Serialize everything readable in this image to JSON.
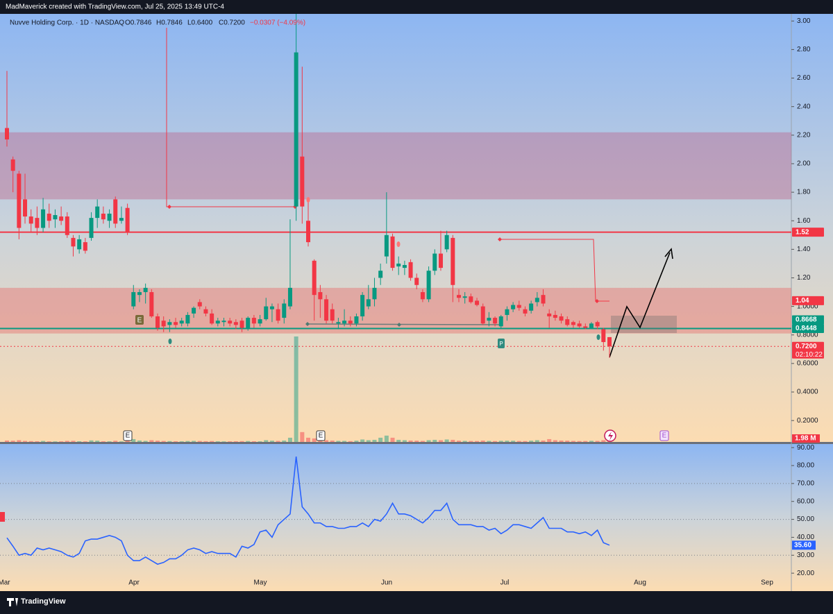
{
  "banner": "MadMaverick created with TradingView.com, Jul 25, 2025 13:49 UTC-4",
  "footer": "TradingView",
  "markers": [
    "E",
    "E",
    "E",
    "E",
    "P"
  ],
  "chart_data": {
    "type": "candlestick",
    "legend": {
      "name": "Nuvve Holding Corp. · 1D · NASDAQ",
      "ohlc": [
        "O0.7846",
        "H0.7846",
        "L0.6400",
        "C0.7200"
      ],
      "change": "−0.0307 (−4.09%)"
    },
    "xlabels": [
      "Mar",
      "Apr",
      "May",
      "Jun",
      "Jul",
      "Aug",
      "Sep"
    ],
    "up_color": "#089981",
    "down_color": "#f23645",
    "ylim": [
      0.05,
      3.05
    ],
    "yticks": [
      {
        "value": 3.0,
        "label": "3.00"
      },
      {
        "value": 2.8,
        "label": "2.80"
      },
      {
        "value": 2.6,
        "label": "2.60"
      },
      {
        "value": 2.4,
        "label": "2.40"
      },
      {
        "value": 2.2,
        "label": "2.20"
      },
      {
        "value": 2.0,
        "label": "2.00"
      },
      {
        "value": 1.8,
        "label": "1.80"
      },
      {
        "value": 1.6,
        "label": "1.60"
      },
      {
        "value": 1.4,
        "label": "1.40"
      },
      {
        "value": 1.2,
        "label": "1.20"
      },
      {
        "value": 1.0,
        "label": "1.0000"
      },
      {
        "value": 0.8,
        "label": "0.8000"
      },
      {
        "value": 0.6,
        "label": "0.6000"
      },
      {
        "value": 0.4,
        "label": "0.4000"
      },
      {
        "value": 0.2,
        "label": "0.2000"
      }
    ],
    "zones": [
      {
        "top": 2.22,
        "bottom": 1.75,
        "color": "rgba(190,90,130,0.38)"
      },
      {
        "top": 1.13,
        "bottom": 0.81,
        "color": "rgba(235,95,95,0.38)"
      }
    ],
    "price_labels": [
      {
        "value": 1.52,
        "color": "#f23645",
        "line": "solid"
      },
      {
        "value": 1.04,
        "color": "#f23645"
      },
      {
        "value": 0.8668,
        "color": "#089981"
      },
      {
        "value": 0.8448,
        "color": "#089981",
        "line": "solid"
      },
      {
        "value": 0.72,
        "label": "0.7200",
        "sub": "02:10:22",
        "color": "#f23645",
        "line": "dashed"
      }
    ],
    "ohlc": [
      [
        2.25,
        2.65,
        2.12,
        2.17
      ],
      [
        2.03,
        2.05,
        1.8,
        1.95
      ],
      [
        1.93,
        1.95,
        1.47,
        1.55
      ],
      [
        1.75,
        1.93,
        1.58,
        1.63
      ],
      [
        1.63,
        1.68,
        1.52,
        1.58
      ],
      [
        1.62,
        1.7,
        1.5,
        1.55
      ],
      [
        1.55,
        1.76,
        1.52,
        1.68
      ],
      [
        1.65,
        1.72,
        1.55,
        1.6
      ],
      [
        1.61,
        1.68,
        1.55,
        1.64
      ],
      [
        1.63,
        1.7,
        1.57,
        1.6
      ],
      [
        1.63,
        1.66,
        1.48,
        1.5
      ],
      [
        1.48,
        1.5,
        1.35,
        1.42
      ],
      [
        1.4,
        1.5,
        1.37,
        1.47
      ],
      [
        1.45,
        1.48,
        1.37,
        1.39
      ],
      [
        1.48,
        1.66,
        1.46,
        1.62
      ],
      [
        1.62,
        1.75,
        1.55,
        1.7
      ],
      [
        1.65,
        1.7,
        1.58,
        1.61
      ],
      [
        1.6,
        1.68,
        1.55,
        1.65
      ],
      [
        1.75,
        1.77,
        1.55,
        1.58
      ],
      [
        1.6,
        1.7,
        1.58,
        1.62
      ],
      [
        1.69,
        1.72,
        1.5,
        1.52
      ],
      [
        1.0,
        1.15,
        0.98,
        1.1
      ],
      [
        1.08,
        1.12,
        1.03,
        1.1
      ],
      [
        1.1,
        1.16,
        1.02,
        1.13
      ],
      [
        1.1,
        1.12,
        0.92,
        0.93
      ],
      [
        0.93,
        0.95,
        0.83,
        0.85
      ],
      [
        0.9,
        0.93,
        0.82,
        0.86
      ],
      [
        0.87,
        0.91,
        0.82,
        0.89
      ],
      [
        0.89,
        0.92,
        0.85,
        0.87
      ],
      [
        0.88,
        0.92,
        0.86,
        0.9
      ],
      [
        0.88,
        0.96,
        0.86,
        0.94
      ],
      [
        0.95,
        1.0,
        0.92,
        0.99
      ],
      [
        1.03,
        1.05,
        0.98,
        1.0
      ],
      [
        0.98,
        1.0,
        0.93,
        0.95
      ],
      [
        0.95,
        0.98,
        0.87,
        0.88
      ],
      [
        0.88,
        0.92,
        0.86,
        0.9
      ],
      [
        0.89,
        0.92,
        0.86,
        0.9
      ],
      [
        0.9,
        0.92,
        0.86,
        0.88
      ],
      [
        0.89,
        0.91,
        0.84,
        0.87
      ],
      [
        0.9,
        0.92,
        0.82,
        0.85
      ],
      [
        0.85,
        0.93,
        0.83,
        0.92
      ],
      [
        0.92,
        0.94,
        0.85,
        0.88
      ],
      [
        0.88,
        0.94,
        0.86,
        0.91
      ],
      [
        0.91,
        1.06,
        0.9,
        1.0
      ],
      [
        0.98,
        1.02,
        0.89,
        1.0
      ],
      [
        0.98,
        1.02,
        0.88,
        0.9
      ],
      [
        0.92,
        1.05,
        0.88,
        1.02
      ],
      [
        1.0,
        1.61,
        0.98,
        1.13
      ],
      [
        1.7,
        3.05,
        1.6,
        2.78
      ],
      [
        2.05,
        2.68,
        1.58,
        1.7
      ],
      [
        1.6,
        1.76,
        1.42,
        1.45
      ],
      [
        1.32,
        1.33,
        0.9,
        1.08
      ],
      [
        1.1,
        1.15,
        0.92,
        1.05
      ],
      [
        1.05,
        1.08,
        0.88,
        0.9
      ],
      [
        0.98,
        1.02,
        0.88,
        0.9
      ],
      [
        0.88,
        0.92,
        0.84,
        0.89
      ],
      [
        0.88,
        0.98,
        0.86,
        0.9
      ],
      [
        0.9,
        0.93,
        0.86,
        0.88
      ],
      [
        0.88,
        0.95,
        0.86,
        0.93
      ],
      [
        0.93,
        1.1,
        0.9,
        1.08
      ],
      [
        1.0,
        1.15,
        0.98,
        1.05
      ],
      [
        1.05,
        1.2,
        1.0,
        1.13
      ],
      [
        1.2,
        1.3,
        1.15,
        1.25
      ],
      [
        1.35,
        1.8,
        1.3,
        1.5
      ],
      [
        1.49,
        1.51,
        1.25,
        1.27
      ],
      [
        1.28,
        1.35,
        1.22,
        1.3
      ],
      [
        1.27,
        1.32,
        1.22,
        1.29
      ],
      [
        1.31,
        1.33,
        1.18,
        1.2
      ],
      [
        1.2,
        1.23,
        1.12,
        1.15
      ],
      [
        1.1,
        1.12,
        1.03,
        1.05
      ],
      [
        1.05,
        1.28,
        1.03,
        1.25
      ],
      [
        1.25,
        1.4,
        1.22,
        1.37
      ],
      [
        1.37,
        1.53,
        1.25,
        1.27
      ],
      [
        1.4,
        1.53,
        1.38,
        1.5
      ],
      [
        1.48,
        1.5,
        1.03,
        1.15
      ],
      [
        1.08,
        1.12,
        1.03,
        1.06
      ],
      [
        1.06,
        1.1,
        1.02,
        1.07
      ],
      [
        1.07,
        1.09,
        1.02,
        1.03
      ],
      [
        1.04,
        1.06,
        1.0,
        1.01
      ],
      [
        1.0,
        1.02,
        0.87,
        0.88
      ],
      [
        0.9,
        0.96,
        0.86,
        0.92
      ],
      [
        0.92,
        0.93,
        0.86,
        0.88
      ],
      [
        0.86,
        0.94,
        0.84,
        0.93
      ],
      [
        0.94,
        1.0,
        0.9,
        0.98
      ],
      [
        0.98,
        1.03,
        0.96,
        1.01
      ],
      [
        1.01,
        1.04,
        0.97,
        0.99
      ],
      [
        0.98,
        1.0,
        0.93,
        0.95
      ],
      [
        0.97,
        1.04,
        0.95,
        1.02
      ],
      [
        1.03,
        1.1,
        1.0,
        1.06
      ],
      [
        1.08,
        1.12,
        1.0,
        1.02
      ],
      [
        0.95,
        0.98,
        0.85,
        0.93
      ],
      [
        0.94,
        0.97,
        0.9,
        0.92
      ],
      [
        0.93,
        0.95,
        0.88,
        0.9
      ],
      [
        0.91,
        0.93,
        0.86,
        0.87
      ],
      [
        0.89,
        0.9,
        0.85,
        0.87
      ],
      [
        0.88,
        0.9,
        0.85,
        0.86
      ],
      [
        0.86,
        0.88,
        0.84,
        0.85
      ],
      [
        0.85,
        0.89,
        0.84,
        0.88
      ],
      [
        0.89,
        0.9,
        0.84,
        0.86
      ],
      [
        0.84,
        0.85,
        0.69,
        0.75
      ],
      [
        0.7846,
        0.7846,
        0.64,
        0.72
      ]
    ],
    "volume": {
      "values": [
        2000000,
        1800000,
        2500000,
        1500000,
        1200000,
        1000000,
        1400000,
        900000,
        800000,
        900000,
        1500000,
        1600000,
        1000000,
        900000,
        2200000,
        1800000,
        1000000,
        900000,
        1700000,
        800000,
        1500000,
        4000000,
        2000000,
        1500000,
        2500000,
        1800000,
        1400000,
        1200000,
        1000000,
        900000,
        1300000,
        1500000,
        1400000,
        1100000,
        1300000,
        900000,
        800000,
        900000,
        1000000,
        1200000,
        1300000,
        1000000,
        900000,
        2500000,
        1800000,
        1500000,
        2000000,
        6000000,
        150000000,
        14000000,
        6000000,
        5000000,
        3000000,
        2500000,
        2000000,
        1500000,
        1500000,
        1200000,
        1800000,
        3500000,
        2500000,
        3000000,
        6000000,
        9000000,
        6000000,
        3000000,
        2500000,
        2000000,
        1800000,
        1500000,
        2500000,
        3000000,
        2500000,
        3500000,
        3000000,
        1800000,
        1500000,
        1400000,
        1300000,
        2000000,
        1500000,
        1300000,
        1600000,
        1800000,
        1700000,
        1400000,
        1300000,
        1800000,
        2500000,
        2000000,
        4000000,
        2500000,
        2000000,
        1800000,
        1500000,
        1300000,
        1400000,
        1600000,
        1500000,
        2500000,
        1980000
      ],
      "last_label": "1.98 M"
    },
    "rsi": {
      "color": "#2962ff",
      "ylim": [
        10,
        92
      ],
      "yticks": [
        {
          "value": 90,
          "label": "90.00"
        },
        {
          "value": 80,
          "label": "80.00"
        },
        {
          "value": 70,
          "label": "70.00"
        },
        {
          "value": 60,
          "label": "60.00"
        },
        {
          "value": 50,
          "label": "50.00"
        },
        {
          "value": 40,
          "label": "40.00"
        },
        {
          "value": 30,
          "label": "30.00"
        },
        {
          "value": 20,
          "label": "20.00"
        }
      ],
      "bands": [
        70,
        50,
        30
      ],
      "values": [
        39.7,
        35,
        30,
        31,
        30,
        34,
        33,
        34,
        33,
        32,
        30,
        29,
        31,
        38,
        39,
        39,
        40,
        41,
        40,
        38,
        30,
        27,
        27,
        29,
        27,
        25,
        26,
        28,
        28,
        30,
        33,
        34,
        33,
        31,
        32,
        31,
        31,
        31,
        29,
        35,
        34,
        36,
        43,
        44,
        40,
        47,
        50,
        53,
        85,
        57,
        53,
        48,
        48,
        46,
        46,
        45,
        45,
        46,
        46,
        48,
        46,
        50,
        49,
        53,
        59,
        53,
        53,
        52,
        50,
        48,
        51,
        55,
        55,
        59,
        50,
        47,
        47,
        47,
        46,
        46,
        44,
        45,
        42,
        44,
        47,
        47,
        46,
        45,
        48,
        51,
        45,
        45,
        45,
        43,
        43,
        42,
        43,
        41,
        44,
        37,
        35.6
      ],
      "last_label": "35.60"
    }
  }
}
